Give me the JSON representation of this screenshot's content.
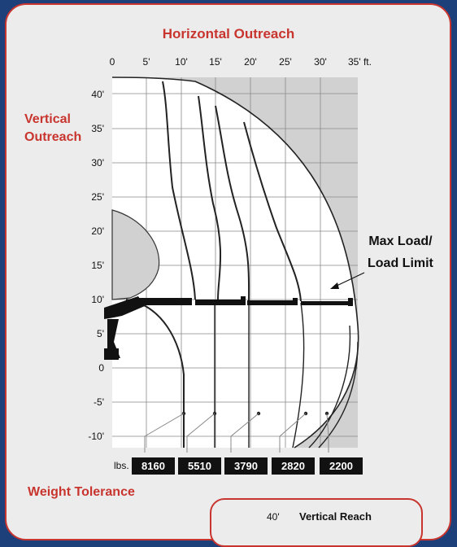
{
  "title": "Horizontal Outreach",
  "vertical_label_line1": "Vertical",
  "vertical_label_line2": "Outreach",
  "callout_line1": "Max Load/",
  "callout_line2": "Load Limit",
  "weight_title": "Weight Tolerance",
  "weight_unit": "lbs.",
  "inset_value": "40'",
  "inset_label": "Vertical Reach",
  "x_ticks": [
    "0",
    "5'",
    "10'",
    "15'",
    "20'",
    "25'",
    "30'",
    "35' ft."
  ],
  "y_ticks": [
    "40'",
    "35'",
    "30'",
    "25'",
    "20'",
    "15'",
    "10'",
    "5'",
    "0",
    "-5'",
    "-10'"
  ],
  "weights": [
    "8160",
    "5510",
    "3790",
    "2820",
    "2200"
  ],
  "colors": {
    "accent": "#c8352e",
    "background": "#1d3f7a",
    "card": "#ececec",
    "shade": "#d1d1d1"
  }
}
